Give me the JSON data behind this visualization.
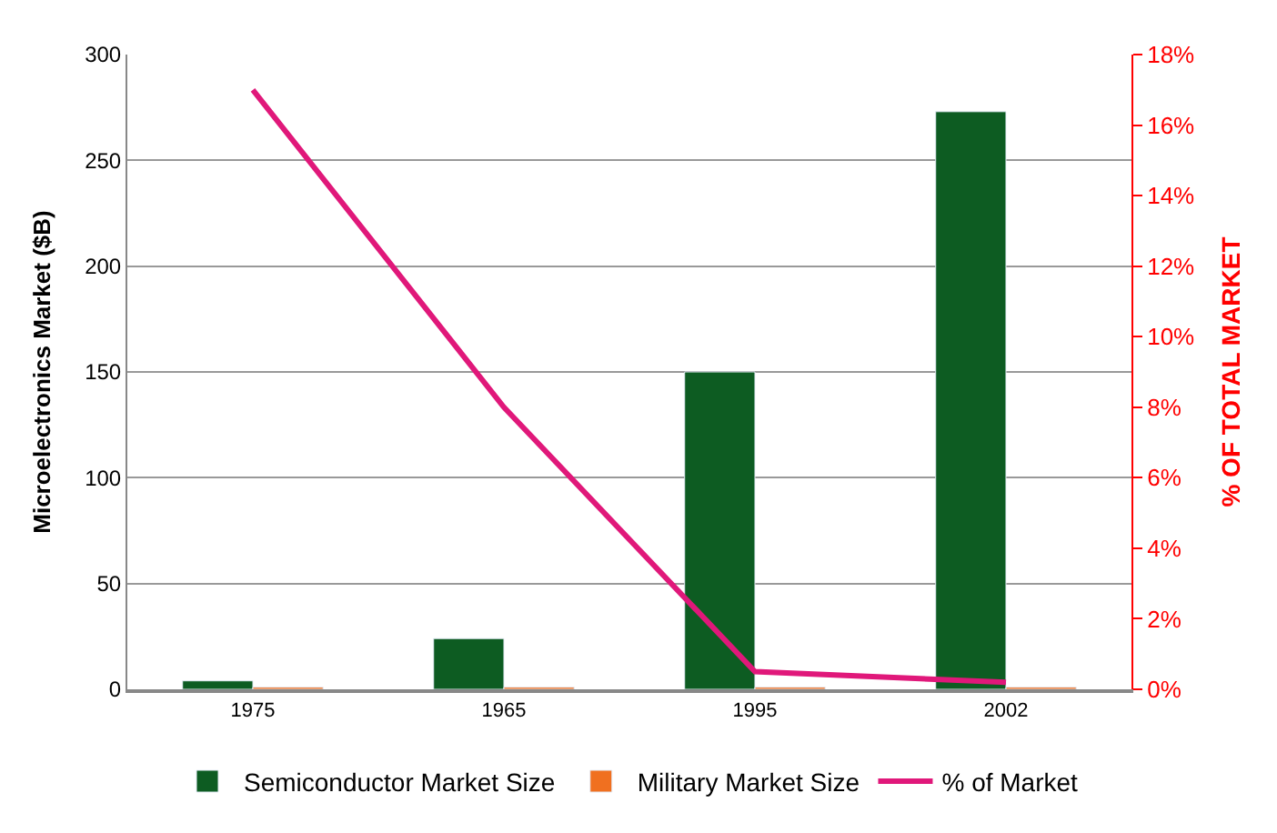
{
  "chart_data": {
    "type": "bar",
    "categories": [
      "1975",
      "1965",
      "1995",
      "2002"
    ],
    "ylabel": "Microelectronics Market ($B)",
    "y2label": "% OF TOTAL MARKET",
    "ylim": [
      0,
      300
    ],
    "yticks": [
      0,
      50,
      100,
      150,
      200,
      250,
      300
    ],
    "y2lim": [
      0,
      18
    ],
    "y2ticks": [
      {
        "value": 0,
        "label": "0%"
      },
      {
        "value": 2,
        "label": "2%"
      },
      {
        "value": 4,
        "label": "4%"
      },
      {
        "value": 6,
        "label": "6%"
      },
      {
        "value": 8,
        "label": "8%"
      },
      {
        "value": 10,
        "label": "10%"
      },
      {
        "value": 12,
        "label": "12%"
      },
      {
        "value": 14,
        "label": "14%"
      },
      {
        "value": 16,
        "label": "16%"
      },
      {
        "value": 18,
        "label": "18%"
      }
    ],
    "grid": "y",
    "legend": "bottom",
    "series": [
      {
        "name": "Semiconductor Market Size",
        "color": "#0d5c22",
        "values": [
          4,
          24,
          150,
          273
        ]
      },
      {
        "name": "Military Market Size",
        "color": "#f07020",
        "values": [
          1,
          1,
          1,
          1
        ]
      },
      {
        "name": "% of Market",
        "type": "line",
        "axis": "y2",
        "color": "#e0187a",
        "marker": "none",
        "values": [
          17,
          8,
          0.5,
          0.2
        ]
      }
    ]
  }
}
